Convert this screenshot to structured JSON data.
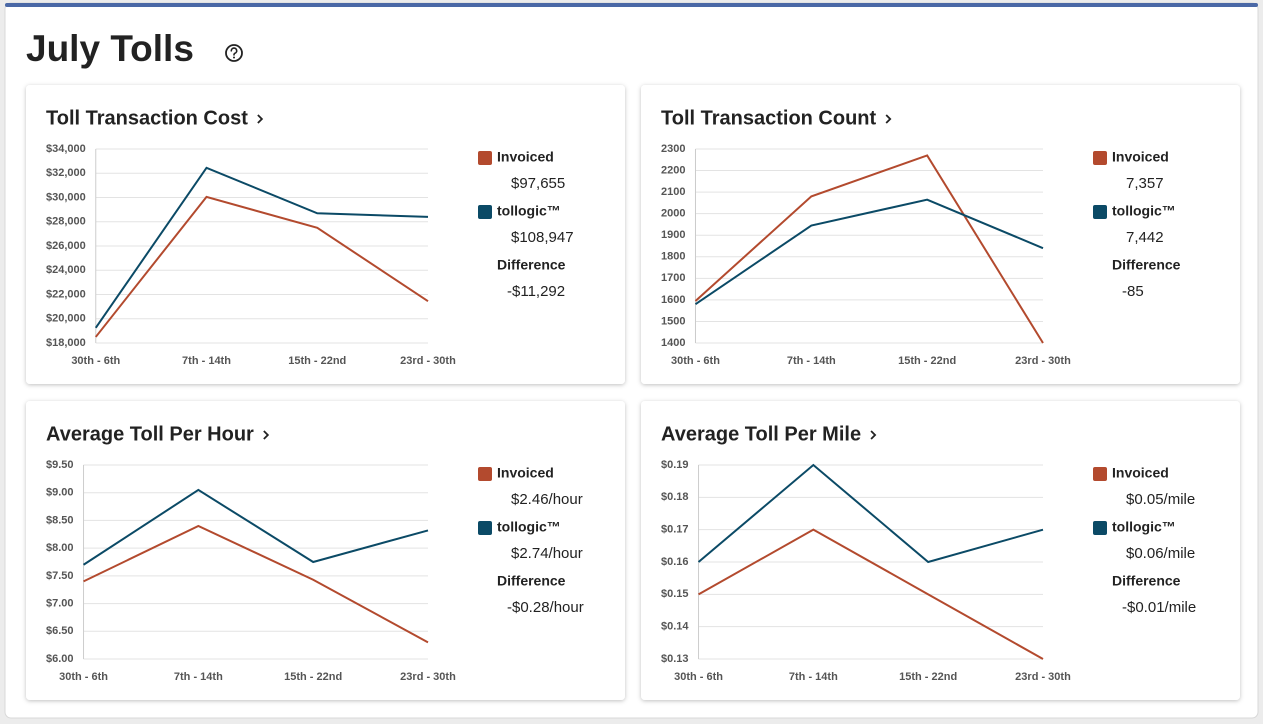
{
  "page_title": "July Tolls",
  "chart_data": [
    {
      "type": "line",
      "title": "Toll Transaction Cost",
      "categories": [
        "30th - 6th",
        "7th - 14th",
        "15th - 22nd",
        "23rd - 30th"
      ],
      "series": [
        {
          "name": "Invoiced",
          "color": "#b34a2e",
          "values": [
            18500,
            30050,
            27500,
            21450
          ],
          "total": "$97,655"
        },
        {
          "name": "tollogic™",
          "color": "#0b4a66",
          "values": [
            19250,
            32450,
            28700,
            28400
          ],
          "total": "$108,947"
        }
      ],
      "difference": {
        "label": "Difference",
        "value": "-$11,292"
      },
      "ylim": [
        18000,
        34000
      ],
      "yticks": [
        {
          "value": 18000,
          "label": "$18,000"
        },
        {
          "value": 20000,
          "label": "$20,000"
        },
        {
          "value": 22000,
          "label": "$22,000"
        },
        {
          "value": 24000,
          "label": "$24,000"
        },
        {
          "value": 26000,
          "label": "$26,000"
        },
        {
          "value": 28000,
          "label": "$28,000"
        },
        {
          "value": 30000,
          "label": "$30,000"
        },
        {
          "value": 32000,
          "label": "$32,000"
        },
        {
          "value": 34000,
          "label": "$34,000"
        }
      ],
      "grid": true
    },
    {
      "type": "line",
      "title": "Toll Transaction Count",
      "categories": [
        "30th - 6th",
        "7th - 14th",
        "15th - 22nd",
        "23rd - 30th"
      ],
      "series": [
        {
          "name": "Invoiced",
          "color": "#b34a2e",
          "values": [
            1595,
            2080,
            2270,
            1400
          ],
          "total": "7,357"
        },
        {
          "name": "tollogic™",
          "color": "#0b4a66",
          "values": [
            1580,
            1945,
            2065,
            1840
          ],
          "total": "7,442"
        }
      ],
      "difference": {
        "label": "Difference",
        "value": "-85"
      },
      "ylim": [
        1400,
        2300
      ],
      "yticks": [
        1400,
        1500,
        1600,
        1700,
        1800,
        1900,
        2000,
        2100,
        2200,
        2300
      ],
      "grid": true
    },
    {
      "type": "line",
      "title": "Average Toll Per Hour",
      "categories": [
        "30th - 6th",
        "7th - 14th",
        "15th - 22nd",
        "23rd - 30th"
      ],
      "series": [
        {
          "name": "Invoiced",
          "color": "#b34a2e",
          "values": [
            7.4,
            8.4,
            7.43,
            6.3
          ],
          "total": "$2.46/hour"
        },
        {
          "name": "tollogic™",
          "color": "#0b4a66",
          "values": [
            7.7,
            9.05,
            7.75,
            8.32
          ],
          "total": "$2.74/hour"
        }
      ],
      "difference": {
        "label": "Difference",
        "value": "-$0.28/hour"
      },
      "ylim": [
        6,
        9.5
      ],
      "yticks": [
        {
          "value": 6,
          "label": "$6.00"
        },
        {
          "value": 6.5,
          "label": "$6.50"
        },
        {
          "value": 7,
          "label": "$7.00"
        },
        {
          "value": 7.5,
          "label": "$7.50"
        },
        {
          "value": 8,
          "label": "$8.00"
        },
        {
          "value": 8.5,
          "label": "$8.50"
        },
        {
          "value": 9,
          "label": "$9.00"
        },
        {
          "value": 9.5,
          "label": "$9.50"
        }
      ],
      "grid": true
    },
    {
      "type": "line",
      "title": "Average Toll Per Mile",
      "categories": [
        "30th - 6th",
        "7th - 14th",
        "15th - 22nd",
        "23rd - 30th"
      ],
      "series": [
        {
          "name": "Invoiced",
          "color": "#b34a2e",
          "values": [
            0.15,
            0.17,
            0.15,
            0.13
          ],
          "total": "$0.05/mile"
        },
        {
          "name": "tollogic™",
          "color": "#0b4a66",
          "values": [
            0.16,
            0.19,
            0.16,
            0.17
          ],
          "total": "$0.06/mile"
        }
      ],
      "difference": {
        "label": "Difference",
        "value": "-$0.01/mile"
      },
      "ylim": [
        0.13,
        0.19
      ],
      "yticks": [
        {
          "value": 0.13,
          "label": "$0.13"
        },
        {
          "value": 0.14,
          "label": "$0.14"
        },
        {
          "value": 0.15,
          "label": "$0.15"
        },
        {
          "value": 0.16,
          "label": "$0.16"
        },
        {
          "value": 0.17,
          "label": "$0.17"
        },
        {
          "value": 0.18,
          "label": "$0.18"
        },
        {
          "value": 0.19,
          "label": "$0.19"
        }
      ],
      "grid": true
    }
  ]
}
